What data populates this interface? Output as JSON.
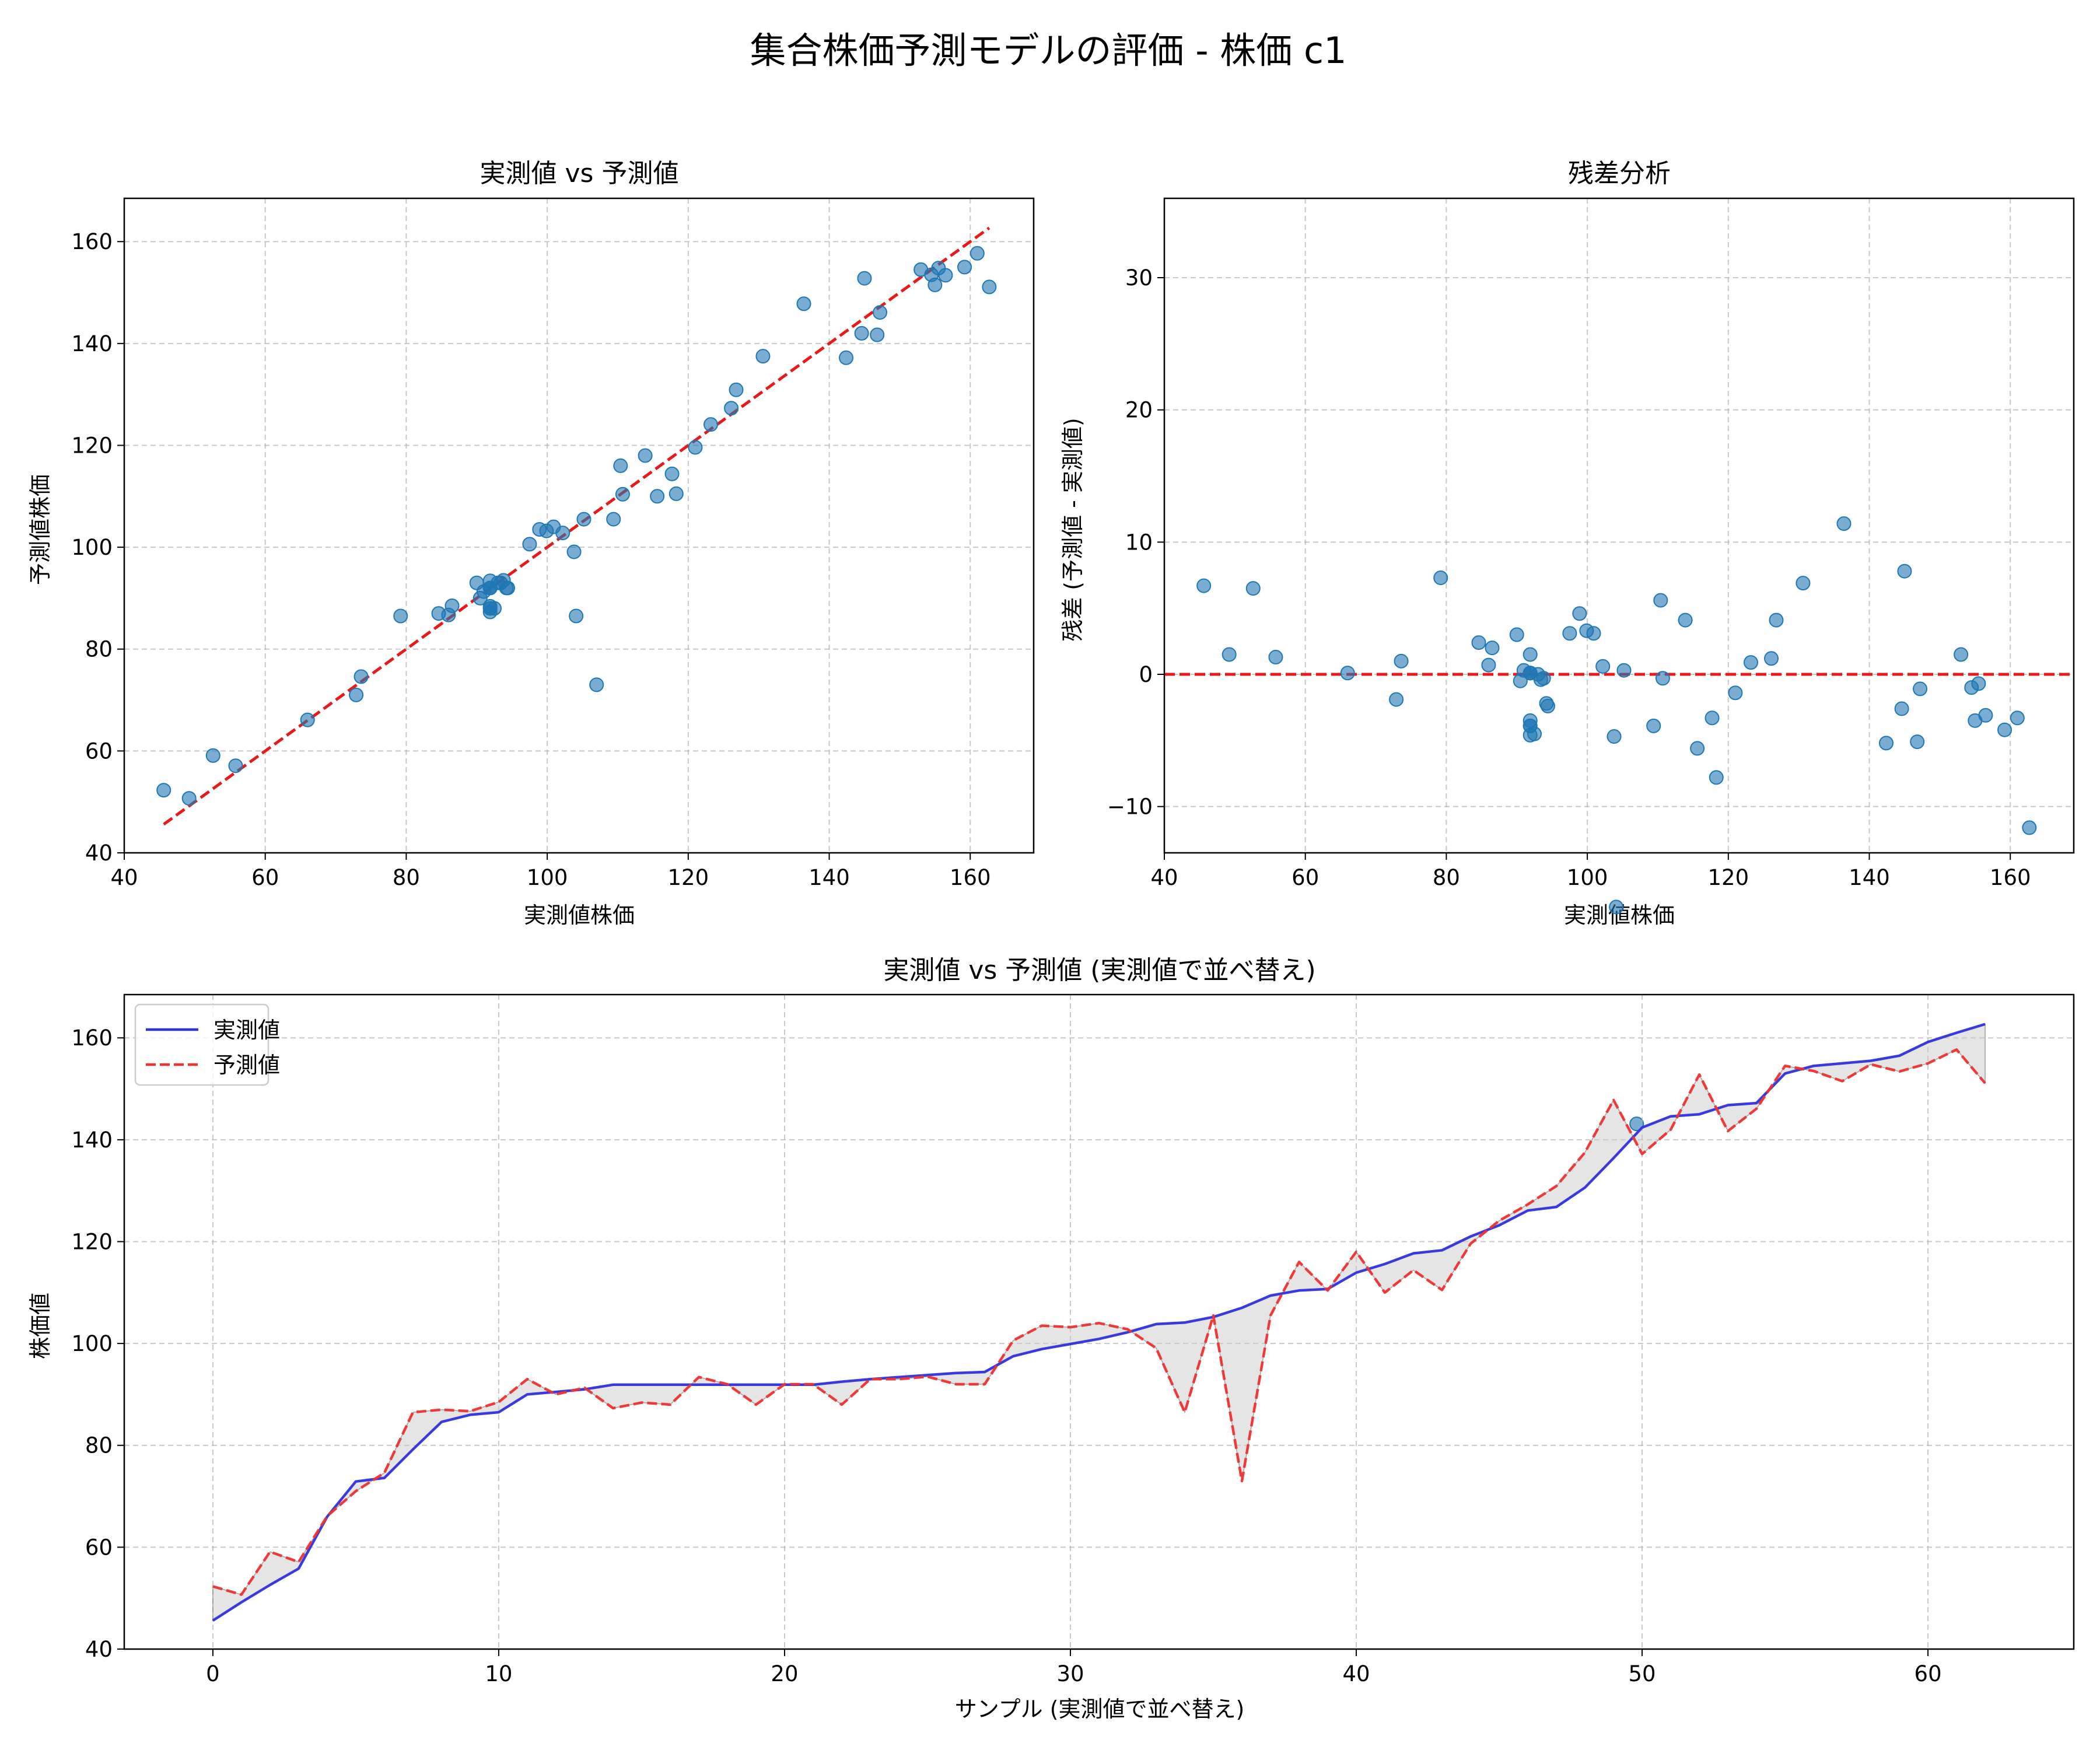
{
  "figure": {
    "suptitle": "集合株価予測モデルの評価 - 株価 c1"
  },
  "chart_data": [
    {
      "type": "scatter",
      "title": "実測値 vs 予測値",
      "xlabel": "実測値株価",
      "ylabel": "予測値株価",
      "xlim": [
        40,
        169
      ],
      "ylim": [
        40,
        168.5
      ],
      "xticks": [
        40,
        60,
        80,
        100,
        120,
        140,
        160
      ],
      "yticks": [
        40,
        60,
        80,
        100,
        120,
        140,
        160
      ],
      "grid": true,
      "reference_line": {
        "from": [
          45.6,
          45.6
        ],
        "to": [
          162.7,
          162.7
        ],
        "color": "#e8191b",
        "style": "dashed"
      },
      "marker_color": "#1f77b4"
    },
    {
      "type": "scatter",
      "title": "残差分析",
      "xlabel": "実測値株価",
      "ylabel": "残差 (予測値 - 実測値)",
      "xlim": [
        40,
        169
      ],
      "ylim": [
        -13.5,
        36
      ],
      "xticks": [
        40,
        60,
        80,
        100,
        120,
        140,
        160
      ],
      "yticks": [
        -10,
        0,
        10,
        20,
        30
      ],
      "grid": true,
      "reference_line": {
        "y": 0,
        "color": "#e8191b",
        "style": "dashed"
      },
      "marker_color": "#1f77b4"
    },
    {
      "type": "line",
      "title": "実測値 vs 予測値 (実測値で並べ替え)",
      "xlabel": "サンプル (実測値で並べ替え)",
      "ylabel": "株価値",
      "xlim": [
        -3.1,
        65.1
      ],
      "ylim": [
        40,
        168.5
      ],
      "xticks": [
        0,
        10,
        20,
        30,
        40,
        50,
        60
      ],
      "yticks": [
        40,
        60,
        80,
        100,
        120,
        140,
        160
      ],
      "grid": true,
      "legend_position": "upper-left",
      "fill_between": {
        "color": "#cccccc",
        "note": "shaded region between series"
      },
      "x": [
        0,
        1,
        2,
        3,
        4,
        5,
        6,
        7,
        8,
        9,
        10,
        11,
        12,
        13,
        14,
        15,
        16,
        17,
        18,
        19,
        20,
        21,
        22,
        23,
        24,
        25,
        26,
        27,
        28,
        29,
        30,
        31,
        32,
        33,
        34,
        35,
        36,
        37,
        38,
        39,
        40,
        41,
        42,
        43,
        44,
        45,
        46,
        47,
        48,
        49,
        50,
        51,
        52,
        53,
        54,
        55,
        56,
        57,
        58,
        59,
        60,
        61,
        62
      ],
      "series": [
        {
          "name": "実測値",
          "color": "#3333dd",
          "style": "solid",
          "values": [
            45.6,
            49.2,
            52.6,
            55.8,
            66.0,
            72.9,
            73.6,
            79.2,
            84.6,
            86.0,
            86.5,
            90.0,
            90.5,
            91.0,
            91.9,
            91.9,
            91.9,
            91.9,
            91.9,
            91.9,
            91.9,
            91.9,
            92.5,
            93.0,
            93.4,
            93.8,
            94.2,
            94.4,
            97.5,
            98.9,
            99.9,
            100.9,
            102.2,
            103.8,
            104.1,
            105.2,
            107.0,
            109.4,
            110.4,
            110.7,
            113.9,
            115.6,
            117.7,
            118.3,
            121.0,
            123.2,
            126.1,
            126.8,
            130.6,
            136.4,
            142.4,
            144.6,
            145.0,
            146.8,
            147.2,
            153.0,
            154.5,
            155.0,
            155.5,
            156.5,
            159.2,
            161.0,
            162.7
          ]
        },
        {
          "name": "予測値",
          "color": "#ee3333",
          "style": "dashed",
          "values": [
            52.3,
            50.7,
            59.1,
            57.1,
            66.1,
            71.0,
            74.6,
            86.5,
            87.0,
            86.7,
            88.5,
            93.0,
            90.0,
            91.3,
            87.3,
            88.4,
            88.0,
            93.4,
            92.0,
            88.0,
            92.0,
            92.0,
            88.0,
            93.0,
            93.0,
            93.5,
            92.0,
            92.0,
            100.6,
            103.5,
            103.2,
            104.0,
            102.8,
            99.1,
            86.5,
            105.5,
            73.0,
            105.5,
            116.0,
            110.4,
            118.0,
            110.0,
            114.4,
            110.5,
            119.6,
            124.1,
            127.3,
            130.9,
            137.5,
            147.8,
            137.2,
            142.0,
            152.8,
            141.7,
            146.1,
            154.5,
            153.5,
            151.5,
            154.8,
            153.4,
            155.0,
            157.7,
            151.1
          ]
        }
      ]
    }
  ]
}
